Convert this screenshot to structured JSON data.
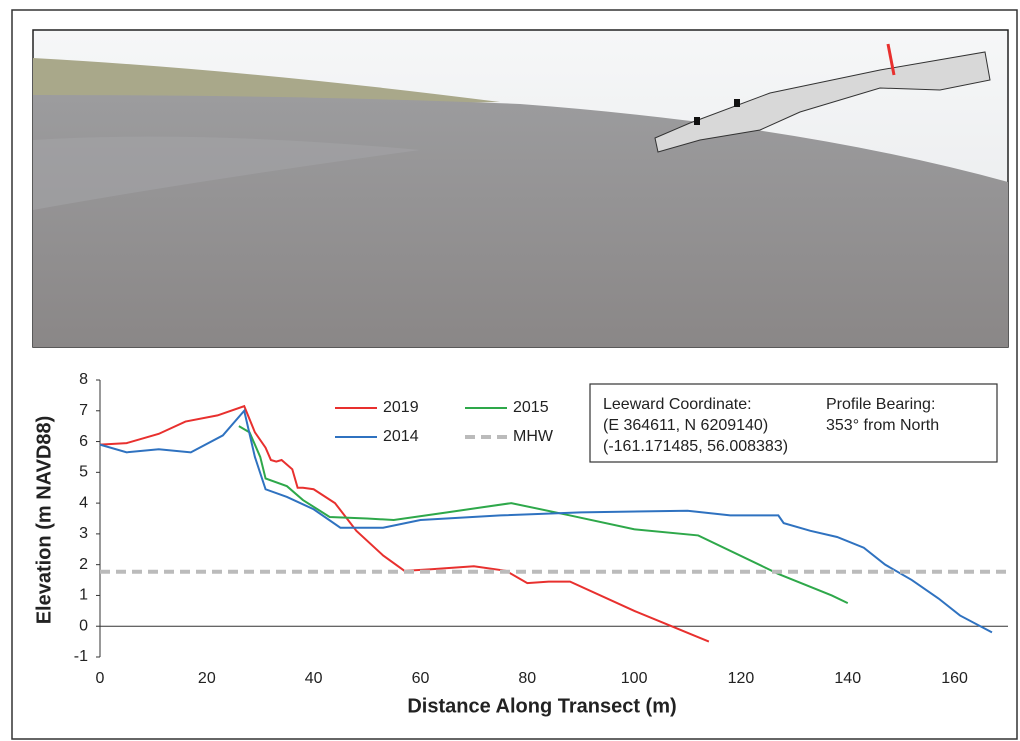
{
  "chart_data": {
    "type": "line",
    "xlabel": "Distance Along Transect (m)",
    "ylabel": "Elevation (m NAVD88)",
    "xlim": [
      0,
      170
    ],
    "ylim": [
      -1,
      8
    ],
    "xticks": [
      0,
      20,
      40,
      60,
      80,
      100,
      120,
      140,
      160
    ],
    "yticks": [
      -1,
      0,
      1,
      2,
      3,
      4,
      5,
      6,
      7,
      8
    ],
    "zero_line": true,
    "series": [
      {
        "name": "2019",
        "color": "#e8302e",
        "dashed": false,
        "x": [
          0,
          5,
          11,
          16,
          22,
          27,
          29,
          31,
          32,
          33,
          34,
          36,
          37,
          38,
          40,
          44,
          48,
          53,
          57,
          62,
          70,
          76,
          80,
          84,
          88,
          100,
          107,
          114
        ],
        "values": [
          5.9,
          5.95,
          6.25,
          6.65,
          6.85,
          7.15,
          6.3,
          5.8,
          5.4,
          5.35,
          5.4,
          5.1,
          4.5,
          4.5,
          4.45,
          4.0,
          3.1,
          2.3,
          1.8,
          1.85,
          1.95,
          1.8,
          1.4,
          1.45,
          1.45,
          0.5,
          0.0,
          -0.5
        ]
      },
      {
        "name": "2015",
        "color": "#2ea84a",
        "dashed": false,
        "x": [
          26,
          28,
          30,
          31,
          35,
          38,
          43,
          50,
          55,
          65,
          77,
          88,
          100,
          112,
          127,
          137,
          140
        ],
        "values": [
          6.5,
          6.3,
          5.5,
          4.8,
          4.55,
          4.1,
          3.55,
          3.5,
          3.45,
          3.7,
          4.0,
          3.6,
          3.15,
          2.95,
          1.7,
          1.0,
          0.75
        ]
      },
      {
        "name": "2014",
        "color": "#2f72c0",
        "dashed": false,
        "x": [
          0,
          5,
          11,
          17,
          23,
          27,
          29,
          31,
          35,
          40,
          45,
          53,
          60,
          75,
          90,
          110,
          118,
          127,
          128,
          133,
          138,
          143,
          147,
          152,
          157,
          161,
          167
        ],
        "values": [
          5.9,
          5.65,
          5.75,
          5.65,
          6.2,
          7.0,
          5.5,
          4.45,
          4.2,
          3.8,
          3.2,
          3.2,
          3.45,
          3.6,
          3.7,
          3.75,
          3.6,
          3.6,
          3.35,
          3.1,
          2.9,
          2.55,
          2.0,
          1.5,
          0.9,
          0.35,
          -0.2
        ]
      },
      {
        "name": "MHW",
        "color": "#bbbbbb",
        "dashed": true,
        "x": [
          0,
          170
        ],
        "values": [
          1.77,
          1.77
        ]
      }
    ],
    "annotation": {
      "lines": [
        "Leeward Coordinate:",
        "(E 364611, N 6209140)",
        "(-161.171485, 56.008383)"
      ],
      "bearing": [
        "Profile Bearing:",
        "353° from North"
      ]
    }
  }
}
